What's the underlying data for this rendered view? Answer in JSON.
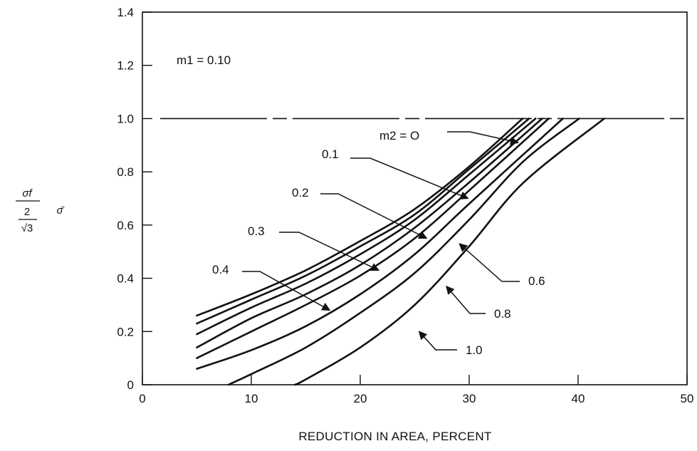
{
  "chart_data": {
    "type": "line",
    "title": "",
    "xlabel": "REDUCTION IN AREA, PERCENT",
    "ylabel": {
      "numerator": "σf",
      "denominator_top": "2",
      "denominator_bottom": "√3",
      "symbol": "σ̄"
    },
    "xlim": [
      0,
      50
    ],
    "ylim": [
      0,
      1.4
    ],
    "x_ticks": [
      "0",
      "10",
      "20",
      "30",
      "40",
      "50"
    ],
    "y_ticks": [
      "0",
      "0.2",
      "0.4",
      "0.6",
      "0.8",
      "1.0",
      "1.2",
      "1.4"
    ],
    "grid": false,
    "parameter_note": "m1 = 0.10",
    "reference_line": {
      "y": 1.0,
      "style": "dashed"
    },
    "series": [
      {
        "name": "m2 = O",
        "points": [
          [
            5,
            0.26
          ],
          [
            10,
            0.34
          ],
          [
            15,
            0.43
          ],
          [
            20,
            0.54
          ],
          [
            25,
            0.66
          ],
          [
            30,
            0.82
          ],
          [
            34.9,
            1.0
          ]
        ]
      },
      {
        "name": "0.1",
        "points": [
          [
            5,
            0.23
          ],
          [
            10,
            0.32
          ],
          [
            15,
            0.41
          ],
          [
            20,
            0.52
          ],
          [
            25,
            0.64
          ],
          [
            30,
            0.81
          ],
          [
            35.5,
            1.0
          ]
        ]
      },
      {
        "name": "0.2",
        "points": [
          [
            5,
            0.19
          ],
          [
            10,
            0.29
          ],
          [
            15,
            0.38
          ],
          [
            20,
            0.49
          ],
          [
            25,
            0.62
          ],
          [
            30,
            0.79
          ],
          [
            36.1,
            1.0
          ]
        ]
      },
      {
        "name": "0.3",
        "points": [
          [
            5,
            0.14
          ],
          [
            10,
            0.25
          ],
          [
            15,
            0.34
          ],
          [
            20,
            0.45
          ],
          [
            25,
            0.59
          ],
          [
            30,
            0.76
          ],
          [
            36.7,
            1.0
          ]
        ]
      },
      {
        "name": "0.4",
        "points": [
          [
            5,
            0.1
          ],
          [
            10,
            0.2
          ],
          [
            15,
            0.3
          ],
          [
            20,
            0.41
          ],
          [
            25,
            0.55
          ],
          [
            30,
            0.73
          ],
          [
            37.3,
            1.0
          ]
        ]
      },
      {
        "name": "0.6",
        "points": [
          [
            5,
            0.06
          ],
          [
            10,
            0.13
          ],
          [
            15,
            0.22
          ],
          [
            20,
            0.34
          ],
          [
            25,
            0.49
          ],
          [
            30,
            0.68
          ],
          [
            38.6,
            1.0
          ]
        ]
      },
      {
        "name": "0.8",
        "points": [
          [
            7.9,
            0
          ],
          [
            10,
            0.04
          ],
          [
            15,
            0.14
          ],
          [
            20,
            0.27
          ],
          [
            25,
            0.42
          ],
          [
            30,
            0.62
          ],
          [
            35,
            0.84
          ],
          [
            40.1,
            1.0
          ]
        ]
      },
      {
        "name": "1.0",
        "points": [
          [
            14,
            0
          ],
          [
            15,
            0.02
          ],
          [
            20,
            0.14
          ],
          [
            25,
            0.3
          ],
          [
            30,
            0.52
          ],
          [
            35,
            0.76
          ],
          [
            42.4,
            1.0
          ]
        ]
      }
    ],
    "annotations": [
      {
        "text": "m2 = O",
        "series": "m2 = O",
        "x": 34.5,
        "y": 0.91
      },
      {
        "text": "0.1",
        "series": "0.1",
        "x": 29.9,
        "y": 0.7
      },
      {
        "text": "0.2",
        "series": "0.2",
        "x": 26.1,
        "y": 0.55
      },
      {
        "text": "0.3",
        "series": "0.3",
        "x": 21.7,
        "y": 0.43
      },
      {
        "text": "0.4",
        "series": "0.4",
        "x": 17.2,
        "y": 0.28
      },
      {
        "text": "0.6",
        "series": "0.6",
        "x": 29.1,
        "y": 0.53
      },
      {
        "text": "0.8",
        "series": "0.8",
        "x": 27.9,
        "y": 0.37
      },
      {
        "text": "1.0",
        "series": "1.0",
        "x": 25.4,
        "y": 0.2
      }
    ]
  }
}
